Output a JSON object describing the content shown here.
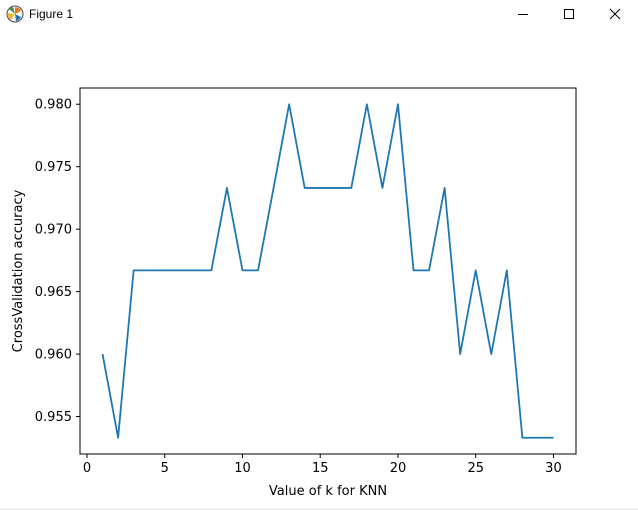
{
  "window": {
    "title": "Figure 1",
    "icons": {
      "app": "matplotlib-icon",
      "minimize": "minimize-icon",
      "maximize": "maximize-icon",
      "close": "close-icon"
    }
  },
  "colors": {
    "line": "#1f77b4",
    "axes": "#000000",
    "background": "#ffffff"
  },
  "chart_data": {
    "type": "line",
    "title": "",
    "xlabel": "Value of k for KNN",
    "ylabel": "CrossValidation accuracy",
    "xlim": [
      -0.45,
      31.45
    ],
    "ylim": [
      0.952,
      0.9813
    ],
    "xticks": [
      0,
      5,
      10,
      15,
      20,
      25,
      30
    ],
    "xtick_labels": [
      "0",
      "5",
      "10",
      "15",
      "20",
      "25",
      "30"
    ],
    "yticks": [
      0.955,
      0.96,
      0.965,
      0.97,
      0.975,
      0.98
    ],
    "ytick_labels": [
      "0.955",
      "0.960",
      "0.965",
      "0.970",
      "0.975",
      "0.980"
    ],
    "grid": false,
    "x": [
      1,
      2,
      3,
      4,
      5,
      6,
      7,
      8,
      9,
      10,
      11,
      12,
      13,
      14,
      15,
      16,
      17,
      18,
      19,
      20,
      21,
      22,
      23,
      24,
      25,
      26,
      27,
      28,
      29,
      30
    ],
    "y": [
      0.96,
      0.9533,
      0.9667,
      0.9667,
      0.9667,
      0.9667,
      0.9667,
      0.9667,
      0.9733,
      0.9667,
      0.9667,
      0.9733,
      0.98,
      0.9733,
      0.9733,
      0.9733,
      0.9733,
      0.98,
      0.9733,
      0.98,
      0.9667,
      0.9667,
      0.9733,
      0.96,
      0.9667,
      0.96,
      0.9667,
      0.9533,
      0.9533,
      0.9533
    ]
  }
}
